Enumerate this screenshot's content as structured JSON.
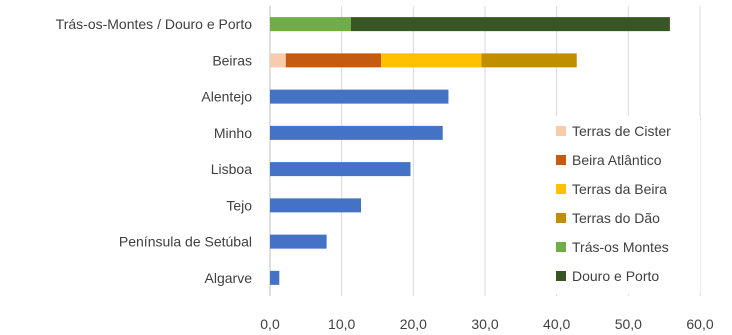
{
  "chart_data": {
    "type": "bar",
    "orientation": "horizontal",
    "stacked": true,
    "categories": [
      "Trás-os-Montes / Douro e Porto",
      "Beiras",
      "Alentejo",
      "Minho",
      "Lisboa",
      "Tejo",
      "Península de Setúbal",
      "Algarve"
    ],
    "series": [
      {
        "name": "Terras de Cister",
        "color": "#f8cbad",
        "values": [
          0,
          2.2,
          0,
          0,
          0,
          0,
          0,
          0
        ]
      },
      {
        "name": "Beira Atlântico",
        "color": "#c55a11",
        "values": [
          0,
          13.3,
          0,
          0,
          0,
          0,
          0,
          0
        ]
      },
      {
        "name": "Terras da Beira",
        "color": "#ffc000",
        "values": [
          0,
          14.0,
          0,
          0,
          0,
          0,
          0,
          0
        ]
      },
      {
        "name": "Terras do Dão",
        "color": "#bf8f00",
        "values": [
          0,
          13.3,
          0,
          0,
          0,
          0,
          0,
          0
        ]
      },
      {
        "name": "Trás-os Montes",
        "color": "#70ad47",
        "values": [
          11.3,
          0,
          0,
          0,
          0,
          0,
          0,
          0
        ]
      },
      {
        "name": "Douro e Porto",
        "color": "#375623",
        "values": [
          44.5,
          0,
          0,
          0,
          0,
          0,
          0,
          0
        ]
      },
      {
        "name": "",
        "color": "#4472c4",
        "values": [
          0,
          0,
          24.9,
          24.1,
          19.6,
          12.7,
          7.9,
          1.3
        ]
      }
    ],
    "xlim": [
      0,
      60
    ],
    "xticks": [
      "0,0",
      "10,0",
      "20,0",
      "30,0",
      "40,0",
      "50,0",
      "60,0"
    ],
    "grid": "vertical",
    "legend": "right",
    "title": "",
    "xlabel": "",
    "ylabel": ""
  }
}
